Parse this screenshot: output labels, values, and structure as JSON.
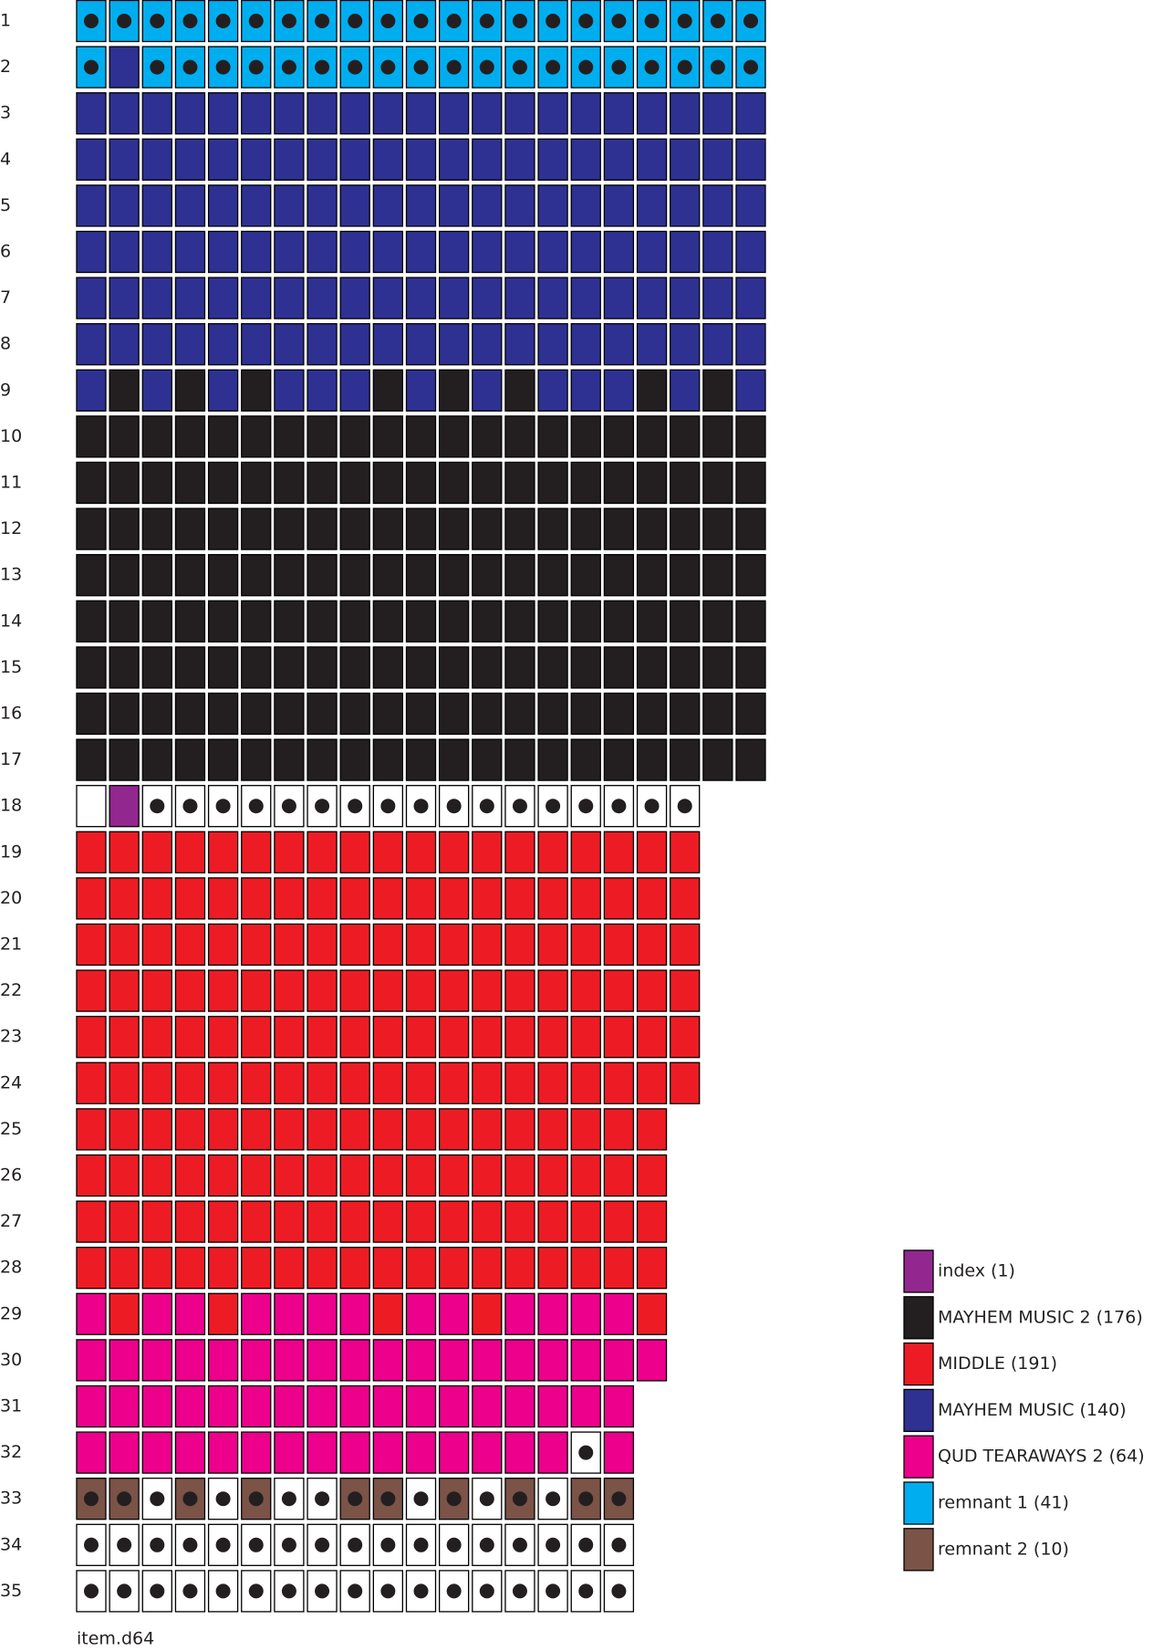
{
  "palette": {
    "c": "#00aeef",
    "b": "#2e3192",
    "k": "#231f20",
    "w": "#ffffff",
    "p": "#92278f",
    "r": "#ed1c24",
    "m": "#ec008c",
    "n": "#7b5347"
  },
  "rows": [
    {
      "label": "1",
      "cells": "CCCCCCCCCCCCCCCCCCCCC"
    },
    {
      "label": "2",
      "cells": "CbCCCCCCCCCCCCCCCCCCC"
    },
    {
      "label": "3",
      "cells": "bbbbbbbbbbbbbbbbbbbbb"
    },
    {
      "label": "4",
      "cells": "bbbbbbbbbbbbbbbbbbbbb"
    },
    {
      "label": "5",
      "cells": "bbbbbbbbbbbbbbbbbbbbb"
    },
    {
      "label": "6",
      "cells": "bbbbbbbbbbbbbbbbbbbbb"
    },
    {
      "label": "7",
      "cells": "bbbbbbbbbbbbbbbbbbbbb"
    },
    {
      "label": "8",
      "cells": "bbbbbbbbbbbbbbbbbbbbb"
    },
    {
      "label": "9",
      "cells": "bkbkbkbbbkbkbkbbbkbkb"
    },
    {
      "label": "10",
      "cells": "kkkkkkkkkkkkkkkkkkkkk"
    },
    {
      "label": "11",
      "cells": "kkkkkkkkkkkkkkkkkkkkk"
    },
    {
      "label": "12",
      "cells": "kkkkkkkkkkkkkkkkkkkkk"
    },
    {
      "label": "13",
      "cells": "kkkkkkkkkkkkkkkkkkkkk"
    },
    {
      "label": "14",
      "cells": "kkkkkkkkkkkkkkkkkkkkk"
    },
    {
      "label": "15",
      "cells": "kkkkkkkkkkkkkkkkkkkkk"
    },
    {
      "label": "16",
      "cells": "kkkkkkkkkkkkkkkkkkkkk"
    },
    {
      "label": "17",
      "cells": "kkkkkkkkkkkkkkkkkkkkk"
    },
    {
      "label": "18",
      "cells": "wpWWWWWWWWWWWWWWWWW"
    },
    {
      "label": "19",
      "cells": "rrrrrrrrrrrrrrrrrrr"
    },
    {
      "label": "20",
      "cells": "rrrrrrrrrrrrrrrrrrr"
    },
    {
      "label": "21",
      "cells": "rrrrrrrrrrrrrrrrrrr"
    },
    {
      "label": "22",
      "cells": "rrrrrrrrrrrrrrrrrrr"
    },
    {
      "label": "23",
      "cells": "rrrrrrrrrrrrrrrrrrr"
    },
    {
      "label": "24",
      "cells": "rrrrrrrrrrrrrrrrrrr"
    },
    {
      "label": "25",
      "cells": "rrrrrrrrrrrrrrrrrr"
    },
    {
      "label": "26",
      "cells": "rrrrrrrrrrrrrrrrrr"
    },
    {
      "label": "27",
      "cells": "rrrrrrrrrrrrrrrrrr"
    },
    {
      "label": "28",
      "cells": "rrrrrrrrrrrrrrrrrr"
    },
    {
      "label": "29",
      "cells": "mrmmrmmmmrmmrmmmmr"
    },
    {
      "label": "30",
      "cells": "mmmmmmmmmmmmmmmmmm"
    },
    {
      "label": "31",
      "cells": "mmmmmmmmmmmmmmmmm"
    },
    {
      "label": "32",
      "cells": "mmmmmmmmmmmmmmmWm"
    },
    {
      "label": "33",
      "cells": "NNWNWNWWNNWNWNWNN"
    },
    {
      "label": "34",
      "cells": "WWWWWWWWWWWWWWWWW"
    },
    {
      "label": "35",
      "cells": "WWWWWWWWWWWWWWWWW"
    }
  ],
  "legend": [
    {
      "key": "p",
      "label": "index (1)"
    },
    {
      "key": "k",
      "label": "MAYHEM MUSIC 2 (176)"
    },
    {
      "key": "r",
      "label": "MIDDLE (191)"
    },
    {
      "key": "b",
      "label": "MAYHEM MUSIC (140)"
    },
    {
      "key": "m",
      "label": "QUD TEARAWAYS 2 (64)"
    },
    {
      "key": "c",
      "label": "remnant 1 (41)"
    },
    {
      "key": "n",
      "label": "remnant 2 (10)"
    }
  ],
  "footer": "item.d64"
}
